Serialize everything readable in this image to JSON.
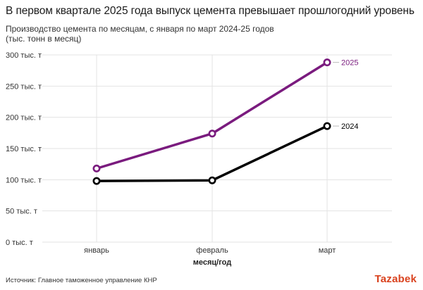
{
  "header": {
    "title": "В первом квартале 2025 года выпуск цемента превышает прошлогодний уровень",
    "subtitle_line1": "Производство цемента по месяцам, с января по март 2024-25 годов",
    "subtitle_line2": "(тыс. тонн в месяц)"
  },
  "footer": {
    "source": "Источник: Главное таможенное управление КНР",
    "logo": "Tazabek"
  },
  "colors": {
    "series_2025": "#7a1b7e",
    "series_2024": "#000000",
    "grid": "#e3e3e3",
    "logo": "#d9421e"
  },
  "chart_data": {
    "type": "line",
    "title": "В первом квартале 2025 года выпуск цемента превышает прошлогодний уровень",
    "subtitle": "Производство цемента по месяцам, с января по март 2024-25 годов (тыс. тонн в месяц)",
    "categories": [
      "январь",
      "февраль",
      "март"
    ],
    "xlabel": "месяц/год",
    "ylabel": "",
    "ylim": [
      0,
      300
    ],
    "yticks": [
      0,
      50,
      100,
      150,
      200,
      250,
      300
    ],
    "ytick_labels": [
      "0 тыс. т",
      "50 тыс. т",
      "100 тыс. т",
      "150 тыс. т",
      "200 тыс. т",
      "250 тыс. т",
      "300 тыс. т"
    ],
    "grid": true,
    "series": [
      {
        "name": "2025",
        "values": [
          118,
          174,
          288
        ],
        "color": "#7a1b7e"
      },
      {
        "name": "2024",
        "values": [
          98,
          99,
          186
        ],
        "color": "#000000"
      }
    ]
  }
}
